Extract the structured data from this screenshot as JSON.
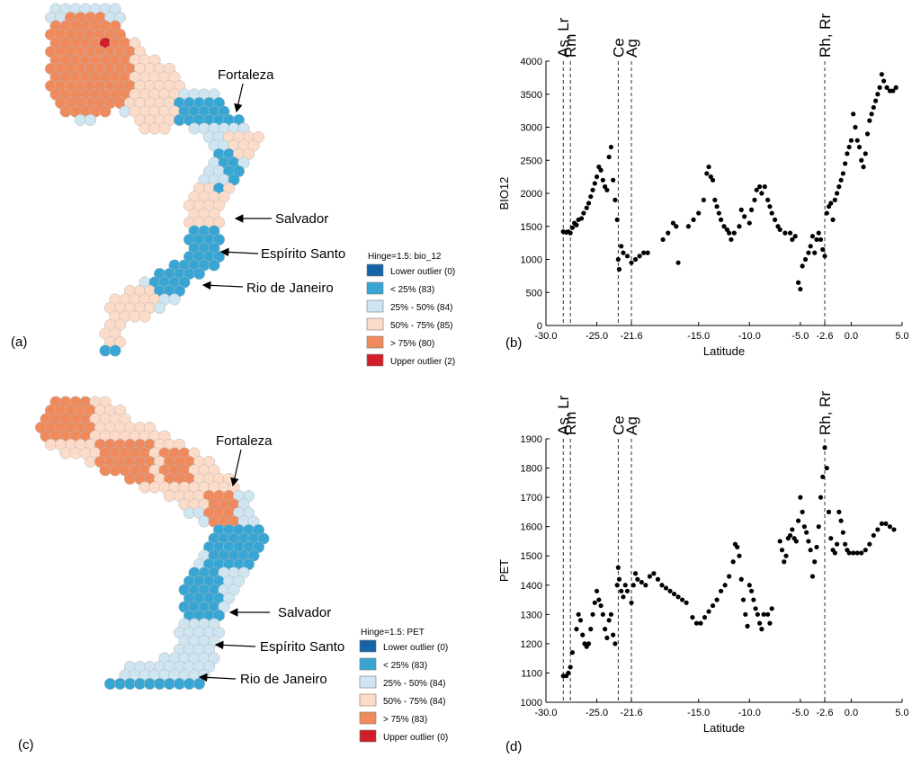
{
  "panel_labels": [
    "(a)",
    "(b)",
    "(c)",
    "(d)"
  ],
  "cities": [
    "Fortaleza",
    "Salvador",
    "Espírito Santo",
    "Rio de Janeiro"
  ],
  "colors": {
    "lower_outlier": "#1663a8",
    "q1": "#38a6d4",
    "q2": "#cfe5f1",
    "q3": "#fcdcc8",
    "q4": "#f08a5c",
    "upper_outlier": "#d11f2a",
    "hex_stroke": "#b9b9b9"
  },
  "legend_a": {
    "title": "Hinge=1.5: bio_12",
    "items": [
      {
        "label": "Lower outlier (0)",
        "color": "#1663a8"
      },
      {
        "label": "< 25% (83)",
        "color": "#38a6d4"
      },
      {
        "label": "25% - 50% (84)",
        "color": "#cfe5f1"
      },
      {
        "label": "50% - 75% (85)",
        "color": "#fcdcc8"
      },
      {
        "label": "> 75% (80)",
        "color": "#f08a5c"
      },
      {
        "label": "Upper outlier (2)",
        "color": "#d11f2a"
      }
    ]
  },
  "legend_c": {
    "title": "Hinge=1.5: PET",
    "items": [
      {
        "label": "Lower outlier (0)",
        "color": "#1663a8"
      },
      {
        "label": "< 25% (83)",
        "color": "#38a6d4"
      },
      {
        "label": "25% - 50% (84)",
        "color": "#cfe5f1"
      },
      {
        "label": "50% - 75% (84)",
        "color": "#fcdcc8"
      },
      {
        "label": "> 75% (83)",
        "color": "#f08a5c"
      },
      {
        "label": "Upper outlier (0)",
        "color": "#d11f2a"
      }
    ]
  },
  "chart_data": [
    {
      "type": "scatter",
      "panel": "(b)",
      "xlabel": "Latitude",
      "ylabel": "BIO12",
      "xlim": [
        -30,
        5
      ],
      "ylim": [
        0,
        4000
      ],
      "xticks": [
        -30.0,
        -25.0,
        -21.6,
        -15.0,
        -10.0,
        -5.0,
        -2.6,
        0.0,
        5.0
      ],
      "xtick_labels": [
        "-30.0",
        "-25.0",
        "-21.6",
        "-15.0",
        "-10.0",
        "-5.0",
        "-2.6",
        "0.0",
        "5.0"
      ],
      "yticks": [
        0,
        500,
        1000,
        1500,
        2000,
        2500,
        3000,
        3500,
        4000
      ],
      "vlines": [
        {
          "x": -28.3,
          "label": "As, Lr"
        },
        {
          "x": -27.6,
          "label": "Rm"
        },
        {
          "x": -22.9,
          "label": "Ce"
        },
        {
          "x": -21.6,
          "label": "Ag"
        },
        {
          "x": -2.6,
          "label": "Rh, Rr"
        }
      ],
      "points": [
        [
          -28.3,
          1420
        ],
        [
          -28.0,
          1410
        ],
        [
          -27.8,
          1420
        ],
        [
          -27.6,
          1400
        ],
        [
          -27.4,
          1480
        ],
        [
          -27.2,
          1550
        ],
        [
          -27.0,
          1520
        ],
        [
          -26.8,
          1600
        ],
        [
          -26.5,
          1620
        ],
        [
          -26.3,
          1700
        ],
        [
          -26.0,
          1780
        ],
        [
          -25.8,
          1850
        ],
        [
          -25.6,
          1950
        ],
        [
          -25.4,
          2050
        ],
        [
          -25.2,
          2150
        ],
        [
          -25.0,
          2250
        ],
        [
          -24.8,
          2400
        ],
        [
          -24.6,
          2350
        ],
        [
          -24.4,
          2200
        ],
        [
          -24.2,
          2100
        ],
        [
          -24.0,
          2050
        ],
        [
          -23.8,
          2550
        ],
        [
          -23.6,
          2700
        ],
        [
          -23.4,
          2200
        ],
        [
          -23.2,
          1900
        ],
        [
          -23.0,
          1600
        ],
        [
          -22.9,
          1000
        ],
        [
          -22.8,
          850
        ],
        [
          -22.6,
          1200
        ],
        [
          -22.4,
          1100
        ],
        [
          -22.0,
          1050
        ],
        [
          -21.6,
          950
        ],
        [
          -21.2,
          1000
        ],
        [
          -20.8,
          1050
        ],
        [
          -20.4,
          1100
        ],
        [
          -20.0,
          1100
        ],
        [
          -18.5,
          1300
        ],
        [
          -18.0,
          1400
        ],
        [
          -17.5,
          1550
        ],
        [
          -17.2,
          1500
        ],
        [
          -17.0,
          950
        ],
        [
          -16.0,
          1500
        ],
        [
          -15.5,
          1600
        ],
        [
          -15.0,
          1700
        ],
        [
          -14.5,
          1900
        ],
        [
          -14.2,
          2300
        ],
        [
          -14.0,
          2400
        ],
        [
          -13.8,
          2250
        ],
        [
          -13.6,
          2200
        ],
        [
          -13.4,
          1900
        ],
        [
          -13.2,
          1800
        ],
        [
          -13.0,
          1700
        ],
        [
          -12.8,
          1600
        ],
        [
          -12.5,
          1500
        ],
        [
          -12.2,
          1450
        ],
        [
          -12.0,
          1400
        ],
        [
          -11.8,
          1300
        ],
        [
          -11.5,
          1400
        ],
        [
          -11.0,
          1500
        ],
        [
          -10.8,
          1750
        ],
        [
          -10.5,
          1650
        ],
        [
          -10.0,
          1550
        ],
        [
          -9.8,
          1750
        ],
        [
          -9.5,
          1900
        ],
        [
          -9.3,
          2050
        ],
        [
          -9.0,
          2100
        ],
        [
          -8.8,
          2000
        ],
        [
          -8.5,
          2100
        ],
        [
          -8.2,
          1900
        ],
        [
          -8.0,
          1800
        ],
        [
          -7.8,
          1700
        ],
        [
          -7.5,
          1600
        ],
        [
          -7.2,
          1500
        ],
        [
          -7.0,
          1450
        ],
        [
          -6.5,
          1400
        ],
        [
          -6.0,
          1400
        ],
        [
          -5.8,
          1300
        ],
        [
          -5.5,
          1350
        ],
        [
          -5.2,
          650
        ],
        [
          -5.0,
          550
        ],
        [
          -4.8,
          900
        ],
        [
          -4.5,
          1000
        ],
        [
          -4.2,
          1100
        ],
        [
          -4.0,
          1200
        ],
        [
          -3.8,
          1350
        ],
        [
          -3.6,
          1100
        ],
        [
          -3.4,
          1300
        ],
        [
          -3.2,
          1400
        ],
        [
          -3.0,
          1300
        ],
        [
          -2.8,
          1150
        ],
        [
          -2.6,
          1050
        ],
        [
          -2.4,
          1700
        ],
        [
          -2.2,
          1800
        ],
        [
          -2.0,
          1850
        ],
        [
          -1.8,
          1600
        ],
        [
          -1.6,
          1900
        ],
        [
          -1.4,
          2000
        ],
        [
          -1.2,
          2100
        ],
        [
          -1.0,
          2200
        ],
        [
          -0.8,
          2300
        ],
        [
          -0.6,
          2450
        ],
        [
          -0.4,
          2600
        ],
        [
          -0.2,
          2700
        ],
        [
          0.0,
          2800
        ],
        [
          0.2,
          3200
        ],
        [
          0.4,
          3000
        ],
        [
          0.6,
          2800
        ],
        [
          0.8,
          2700
        ],
        [
          1.0,
          2500
        ],
        [
          1.2,
          2400
        ],
        [
          1.4,
          2600
        ],
        [
          1.6,
          2900
        ],
        [
          1.8,
          3100
        ],
        [
          2.0,
          3200
        ],
        [
          2.2,
          3300
        ],
        [
          2.4,
          3400
        ],
        [
          2.6,
          3500
        ],
        [
          2.8,
          3600
        ],
        [
          3.0,
          3800
        ],
        [
          3.2,
          3700
        ],
        [
          3.5,
          3600
        ],
        [
          3.8,
          3550
        ],
        [
          4.1,
          3550
        ],
        [
          4.4,
          3600
        ]
      ]
    },
    {
      "type": "scatter",
      "panel": "(d)",
      "xlabel": "Latitude",
      "ylabel": "PET",
      "xlim": [
        -30,
        5
      ],
      "ylim": [
        1000,
        1900
      ],
      "xticks": [
        -30.0,
        -25.0,
        -21.6,
        -15.0,
        -10.0,
        -5.0,
        -2.6,
        0.0,
        5.0
      ],
      "xtick_labels": [
        "-30.0",
        "-25.0",
        "-21.6",
        "-15.0",
        "-10.0",
        "-5.0",
        "-2.6",
        "0.0",
        "5.0"
      ],
      "yticks": [
        1000,
        1100,
        1200,
        1300,
        1400,
        1500,
        1600,
        1700,
        1800,
        1900
      ],
      "vlines": [
        {
          "x": -28.3,
          "label": "As, Lr"
        },
        {
          "x": -27.6,
          "label": "Rm"
        },
        {
          "x": -22.9,
          "label": "Ce"
        },
        {
          "x": -21.6,
          "label": "Ag"
        },
        {
          "x": -2.6,
          "label": "Rh, Rr"
        }
      ],
      "points": [
        [
          -28.3,
          1090
        ],
        [
          -28.0,
          1090
        ],
        [
          -27.8,
          1100
        ],
        [
          -27.6,
          1120
        ],
        [
          -27.4,
          1170
        ],
        [
          -27.0,
          1250
        ],
        [
          -26.8,
          1300
        ],
        [
          -26.6,
          1280
        ],
        [
          -26.4,
          1230
        ],
        [
          -26.2,
          1200
        ],
        [
          -26.0,
          1190
        ],
        [
          -25.8,
          1200
        ],
        [
          -25.6,
          1250
        ],
        [
          -25.4,
          1300
        ],
        [
          -25.2,
          1340
        ],
        [
          -25.0,
          1380
        ],
        [
          -24.8,
          1350
        ],
        [
          -24.6,
          1330
        ],
        [
          -24.4,
          1300
        ],
        [
          -24.2,
          1250
        ],
        [
          -24.0,
          1220
        ],
        [
          -23.8,
          1280
        ],
        [
          -23.6,
          1300
        ],
        [
          -23.4,
          1230
        ],
        [
          -23.2,
          1200
        ],
        [
          -23.0,
          1400
        ],
        [
          -22.9,
          1460
        ],
        [
          -22.8,
          1420
        ],
        [
          -22.6,
          1380
        ],
        [
          -22.4,
          1360
        ],
        [
          -22.2,
          1400
        ],
        [
          -22.0,
          1380
        ],
        [
          -21.6,
          1340
        ],
        [
          -21.4,
          1400
        ],
        [
          -21.2,
          1440
        ],
        [
          -21.0,
          1420
        ],
        [
          -20.6,
          1410
        ],
        [
          -20.2,
          1400
        ],
        [
          -19.8,
          1430
        ],
        [
          -19.4,
          1440
        ],
        [
          -19.0,
          1420
        ],
        [
          -18.6,
          1400
        ],
        [
          -18.2,
          1390
        ],
        [
          -17.8,
          1380
        ],
        [
          -17.4,
          1370
        ],
        [
          -17.0,
          1360
        ],
        [
          -16.6,
          1350
        ],
        [
          -16.2,
          1340
        ],
        [
          -15.6,
          1290
        ],
        [
          -15.2,
          1270
        ],
        [
          -14.8,
          1270
        ],
        [
          -14.4,
          1290
        ],
        [
          -14.0,
          1310
        ],
        [
          -13.6,
          1330
        ],
        [
          -13.2,
          1350
        ],
        [
          -12.8,
          1380
        ],
        [
          -12.4,
          1400
        ],
        [
          -12.0,
          1430
        ],
        [
          -11.6,
          1480
        ],
        [
          -11.4,
          1540
        ],
        [
          -11.2,
          1530
        ],
        [
          -11.0,
          1500
        ],
        [
          -10.8,
          1420
        ],
        [
          -10.6,
          1350
        ],
        [
          -10.4,
          1300
        ],
        [
          -10.2,
          1260
        ],
        [
          -10.0,
          1400
        ],
        [
          -9.8,
          1380
        ],
        [
          -9.6,
          1350
        ],
        [
          -9.4,
          1320
        ],
        [
          -9.2,
          1300
        ],
        [
          -9.0,
          1270
        ],
        [
          -8.8,
          1250
        ],
        [
          -8.6,
          1300
        ],
        [
          -8.2,
          1300
        ],
        [
          -8.0,
          1270
        ],
        [
          -7.8,
          1320
        ],
        [
          -7.0,
          1550
        ],
        [
          -6.8,
          1520
        ],
        [
          -6.6,
          1480
        ],
        [
          -6.4,
          1500
        ],
        [
          -6.2,
          1560
        ],
        [
          -6.0,
          1570
        ],
        [
          -5.8,
          1590
        ],
        [
          -5.6,
          1560
        ],
        [
          -5.4,
          1550
        ],
        [
          -5.2,
          1620
        ],
        [
          -5.0,
          1700
        ],
        [
          -4.8,
          1650
        ],
        [
          -4.6,
          1600
        ],
        [
          -4.4,
          1580
        ],
        [
          -4.2,
          1550
        ],
        [
          -4.0,
          1520
        ],
        [
          -3.8,
          1430
        ],
        [
          -3.6,
          1480
        ],
        [
          -3.4,
          1530
        ],
        [
          -3.2,
          1600
        ],
        [
          -3.0,
          1700
        ],
        [
          -2.8,
          1770
        ],
        [
          -2.6,
          1870
        ],
        [
          -2.4,
          1800
        ],
        [
          -2.2,
          1650
        ],
        [
          -2.0,
          1560
        ],
        [
          -1.8,
          1520
        ],
        [
          -1.6,
          1510
        ],
        [
          -1.4,
          1540
        ],
        [
          -1.2,
          1650
        ],
        [
          -1.0,
          1620
        ],
        [
          -0.8,
          1580
        ],
        [
          -0.6,
          1540
        ],
        [
          -0.4,
          1520
        ],
        [
          -0.2,
          1510
        ],
        [
          0.2,
          1510
        ],
        [
          0.6,
          1510
        ],
        [
          1.0,
          1510
        ],
        [
          1.4,
          1520
        ],
        [
          1.8,
          1540
        ],
        [
          2.2,
          1570
        ],
        [
          2.6,
          1590
        ],
        [
          3.0,
          1610
        ],
        [
          3.4,
          1610
        ],
        [
          3.8,
          1600
        ],
        [
          4.2,
          1590
        ]
      ]
    }
  ]
}
